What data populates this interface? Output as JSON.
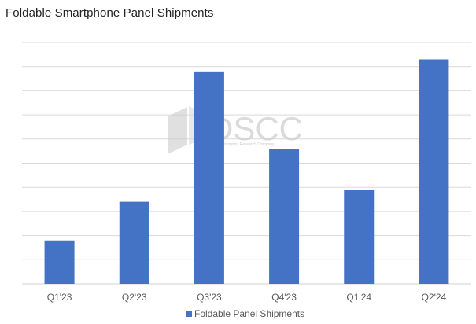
{
  "title": "Foldable Smartphone Panel Shipments",
  "watermark": {
    "brand": "DSCC",
    "tagline": "A Counterpoint Research Company"
  },
  "colors": {
    "bar": "#4472C4",
    "grid": "#D9D9D9",
    "text": "#595959",
    "title": "#222222",
    "watermark": "#C8C8C8"
  },
  "chart_data": {
    "type": "bar",
    "title": "Foldable Smartphone Panel Shipments",
    "categories": [
      "Q1'23",
      "Q2'23",
      "Q3'23",
      "Q4'23",
      "Q1'24",
      "Q2'24"
    ],
    "series": [
      {
        "name": "Foldable Panel Shipments",
        "values": [
          1.8,
          3.4,
          8.8,
          5.6,
          3.9,
          9.3
        ]
      }
    ],
    "ylim": [
      0,
      10
    ],
    "grid": true,
    "y_axis_labels": false,
    "legend": "bottom"
  }
}
